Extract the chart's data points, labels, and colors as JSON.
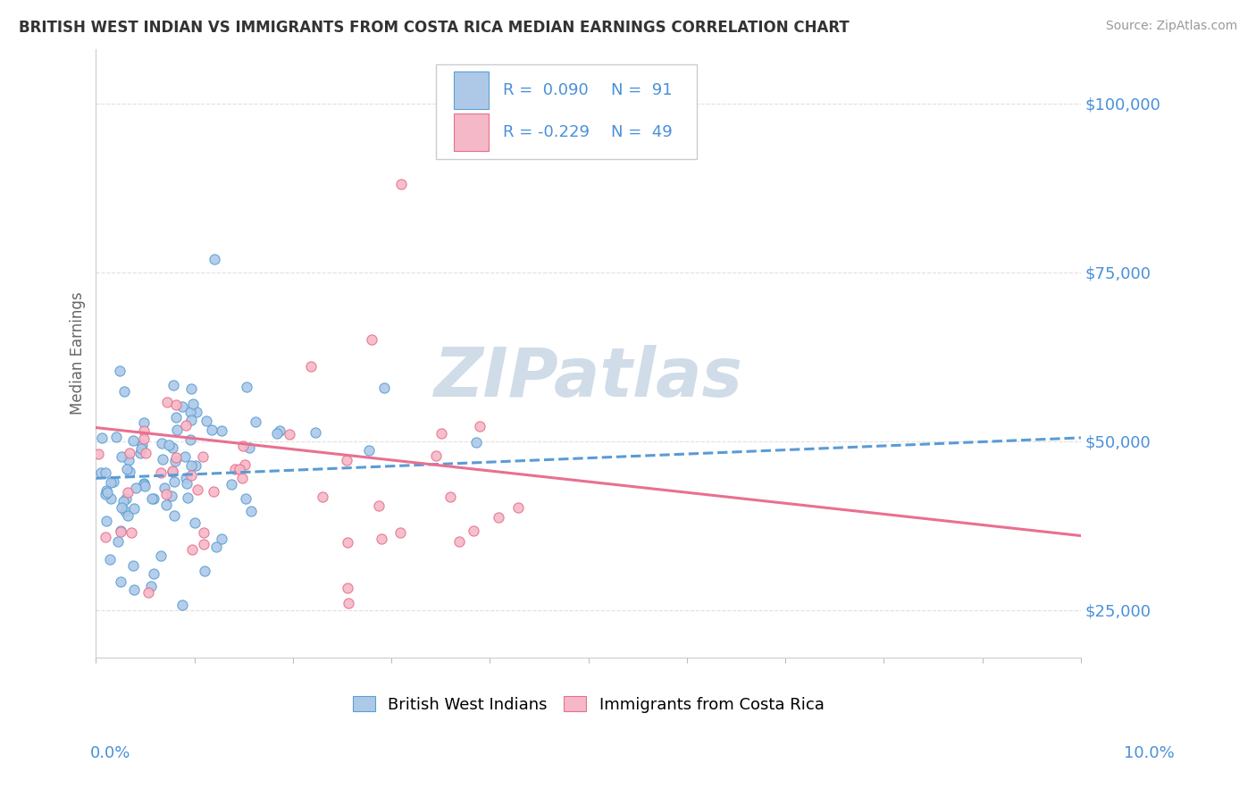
{
  "title": "BRITISH WEST INDIAN VS IMMIGRANTS FROM COSTA RICA MEDIAN EARNINGS CORRELATION CHART",
  "source": "Source: ZipAtlas.com",
  "ylabel": "Median Earnings",
  "xmin": 0.0,
  "xmax": 0.1,
  "ymin": 18000,
  "ymax": 108000,
  "yticks": [
    25000,
    50000,
    75000,
    100000
  ],
  "ytick_labels": [
    "$25,000",
    "$50,000",
    "$75,000",
    "$100,000"
  ],
  "blue_color": "#aec9e8",
  "pink_color": "#f4b8c8",
  "blue_edge_color": "#5a9fd4",
  "pink_edge_color": "#e8708a",
  "blue_line_color": "#5b9bd5",
  "pink_line_color": "#e87090",
  "axis_label_color": "#4a90d9",
  "title_color": "#333333",
  "source_color": "#999999",
  "grid_color": "#e0e0e0",
  "watermark": "ZIPatlas",
  "watermark_color": "#d0dce8",
  "seed_blue": 42,
  "seed_pink": 123,
  "blue_N": 91,
  "pink_N": 49,
  "blue_R": 0.09,
  "pink_R": -0.229,
  "blue_line_x0": 0.0,
  "blue_line_x1": 0.1,
  "blue_line_y0": 44500,
  "blue_line_y1": 50500,
  "pink_line_x0": 0.0,
  "pink_line_x1": 0.1,
  "pink_line_y0": 52000,
  "pink_line_y1": 36000
}
